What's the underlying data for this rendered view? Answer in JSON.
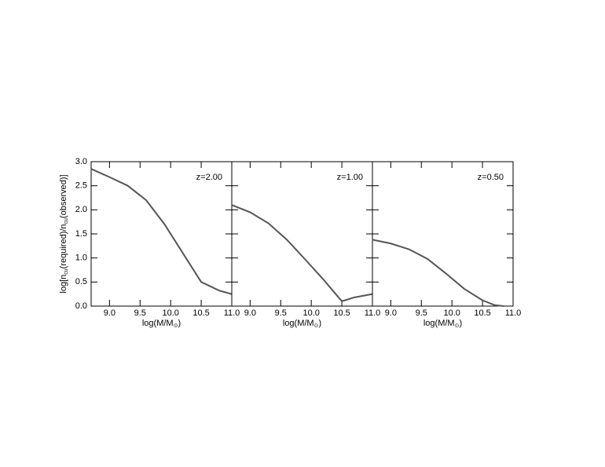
{
  "chart_data": [
    {
      "type": "line",
      "annotation": "z=2.00",
      "ylabel": [
        "log[n",
        "cu",
        "(required)/n",
        "cu",
        "(observed)]"
      ],
      "xlabel": [
        "log(M/M",
        "⊙",
        ")"
      ],
      "x": [
        8.7,
        9.0,
        9.3,
        9.6,
        9.9,
        10.2,
        10.5,
        10.8,
        11.0
      ],
      "series": [
        {
          "color": "#555555",
          "values": [
            2.85,
            2.68,
            2.5,
            2.2,
            1.7,
            1.1,
            0.5,
            0.32,
            0.25
          ]
        }
      ],
      "xlim": [
        8.7,
        11.0
      ],
      "ylim": [
        0.0,
        3.0
      ],
      "xticks": [
        {
          "value": 9,
          "label": "9.0"
        },
        9.5,
        {
          "value": 10,
          "label": "10.0"
        },
        10.5,
        {
          "value": 11,
          "label": "11.0"
        }
      ],
      "yticks": [
        {
          "value": 0,
          "label": "0.0"
        },
        0.5,
        {
          "value": 1,
          "label": "1.0"
        },
        1.5,
        {
          "value": 2,
          "label": "2.0"
        },
        2.5,
        {
          "value": 3,
          "label": "3.0"
        }
      ]
    },
    {
      "type": "line",
      "annotation": "z=1.00",
      "xlabel": [
        "log(M/M",
        "⊙",
        ")"
      ],
      "x": [
        8.7,
        9.0,
        9.3,
        9.6,
        9.9,
        10.2,
        10.4,
        10.5,
        10.7,
        11.0
      ],
      "series": [
        {
          "color": "#555555",
          "values": [
            2.1,
            1.95,
            1.72,
            1.38,
            0.97,
            0.55,
            0.25,
            0.1,
            0.18,
            0.25
          ]
        }
      ],
      "xlim": [
        8.7,
        11.0
      ],
      "ylim": [
        0.0,
        3.0
      ],
      "xticks": [
        {
          "value": 9,
          "label": "9.0"
        },
        9.5,
        {
          "value": 10,
          "label": "10.0"
        },
        10.5,
        {
          "value": 11,
          "label": "11.0"
        }
      ],
      "yticks": [
        0,
        0.5,
        1,
        1.5,
        2,
        2.5,
        3
      ],
      "ytick_labels": false
    },
    {
      "type": "line",
      "annotation": "z=0.50",
      "xlabel": [
        "log(M/M",
        "⊙",
        ")"
      ],
      "x": [
        8.7,
        9.0,
        9.3,
        9.6,
        9.9,
        10.2,
        10.5,
        10.7,
        10.85
      ],
      "series": [
        {
          "color": "#555555",
          "values": [
            1.38,
            1.3,
            1.18,
            0.98,
            0.68,
            0.36,
            0.12,
            0.02,
            0.0
          ]
        }
      ],
      "xlim": [
        8.7,
        11.0
      ],
      "ylim": [
        0.0,
        3.0
      ],
      "xticks": [
        {
          "value": 9,
          "label": "9.0"
        },
        9.5,
        {
          "value": 10,
          "label": "10.0"
        },
        10.5,
        {
          "value": 11,
          "label": "11.0"
        }
      ],
      "yticks": [
        0,
        0.5,
        1,
        1.5,
        2,
        2.5,
        3
      ],
      "ytick_labels": false
    }
  ]
}
